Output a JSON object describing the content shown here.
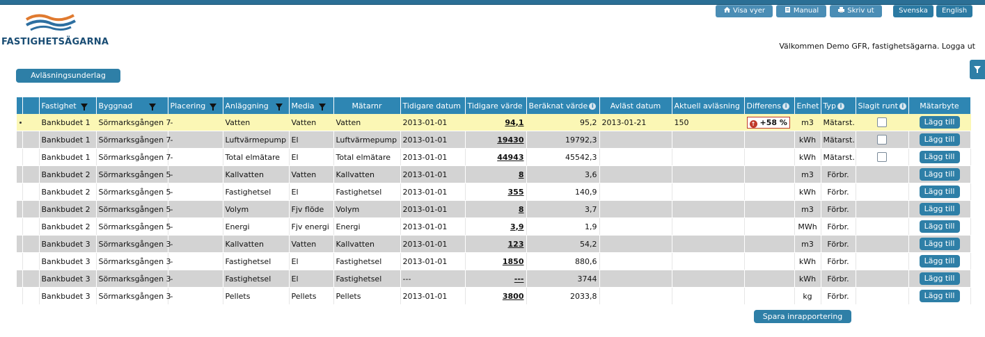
{
  "brand": {
    "name": "FASTIGHETSÄGARNA"
  },
  "topbar": {
    "view_label": "Visa vyer",
    "manual_label": "Manual",
    "print_label": "Skriv ut",
    "lang_sv": "Svenska",
    "lang_en": "English"
  },
  "welcome": "Välkommen Demo GFR, fastighetsägarna. Logga ut",
  "section_button": "Avläsningsunderlag",
  "table": {
    "headers": [
      "Fastighet",
      "Byggnad",
      "Placering",
      "Anläggning",
      "Media",
      "Mätarnr",
      "Tidigare datum",
      "Tidigare värde",
      "Beräknat värde",
      "Avläst datum",
      "Aktuell avläsning",
      "Differens",
      "Enhet",
      "Typ",
      "Slagit runt",
      "Mätarbyte"
    ],
    "add_label": "Lägg till",
    "rows": [
      {
        "fastighet": "Bankbudet 1",
        "byggnad": "Sörmarksgången 7",
        "placering": "-",
        "anl": "Vatten",
        "media": "Vatten",
        "matarnr": "Vatten",
        "tdatum": "2013-01-01",
        "tvarde": "94,1",
        "berakn": "95,2",
        "adatum": "2013-01-21",
        "aktuell": "150",
        "diff": "+58 %",
        "enhet": "m3",
        "typ": "Mätarst."
      },
      {
        "fastighet": "Bankbudet 1",
        "byggnad": "Sörmarksgången 7",
        "placering": "-",
        "anl": "Luftvärmepump",
        "media": "El",
        "matarnr": "Luftvärmepump",
        "tdatum": "2013-01-01",
        "tvarde": "19430",
        "berakn": "19792,3",
        "adatum": "",
        "aktuell": "",
        "diff": "",
        "enhet": "kWh",
        "typ": "Mätarst."
      },
      {
        "fastighet": "Bankbudet 1",
        "byggnad": "Sörmarksgången 7",
        "placering": "-",
        "anl": "Total elmätare",
        "media": "El",
        "matarnr": "Total elmätare",
        "tdatum": "2013-01-01",
        "tvarde": "44943",
        "berakn": "45542,3",
        "adatum": "",
        "aktuell": "",
        "diff": "",
        "enhet": "kWh",
        "typ": "Mätarst."
      },
      {
        "fastighet": "Bankbudet 2",
        "byggnad": "Sörmarksgången 5",
        "placering": "-",
        "anl": "Kallvatten",
        "media": "Vatten",
        "matarnr": "Kallvatten",
        "tdatum": "2013-01-01",
        "tvarde": "8",
        "berakn": "3,6",
        "adatum": "",
        "aktuell": "",
        "diff": "",
        "enhet": "m3",
        "typ": "Förbr."
      },
      {
        "fastighet": "Bankbudet 2",
        "byggnad": "Sörmarksgången 5",
        "placering": "-",
        "anl": "Fastighetsel",
        "media": "El",
        "matarnr": "Fastighetsel",
        "tdatum": "2013-01-01",
        "tvarde": "355",
        "berakn": "140,9",
        "adatum": "",
        "aktuell": "",
        "diff": "",
        "enhet": "kWh",
        "typ": "Förbr."
      },
      {
        "fastighet": "Bankbudet 2",
        "byggnad": "Sörmarksgången 5",
        "placering": "-",
        "anl": "Volym",
        "media": "Fjv flöde",
        "matarnr": "Volym",
        "tdatum": "2013-01-01",
        "tvarde": "8",
        "berakn": "3,7",
        "adatum": "",
        "aktuell": "",
        "diff": "",
        "enhet": "m3",
        "typ": "Förbr."
      },
      {
        "fastighet": "Bankbudet 2",
        "byggnad": "Sörmarksgången 5",
        "placering": "-",
        "anl": "Energi",
        "media": "Fjv energi",
        "matarnr": "Energi",
        "tdatum": "2013-01-01",
        "tvarde": "3,9",
        "berakn": "1,9",
        "adatum": "",
        "aktuell": "",
        "diff": "",
        "enhet": "MWh",
        "typ": "Förbr."
      },
      {
        "fastighet": "Bankbudet 3",
        "byggnad": "Sörmarksgången 3",
        "placering": "-",
        "anl": "Kallvatten",
        "media": "Vatten",
        "matarnr": "Kallvatten",
        "tdatum": "2013-01-01",
        "tvarde": "123",
        "berakn": "54,2",
        "adatum": "",
        "aktuell": "",
        "diff": "",
        "enhet": "m3",
        "typ": "Förbr."
      },
      {
        "fastighet": "Bankbudet 3",
        "byggnad": "Sörmarksgången 3",
        "placering": "-",
        "anl": "Fastighetsel",
        "media": "El",
        "matarnr": "Fastighetsel",
        "tdatum": "2013-01-01",
        "tvarde": "1850",
        "berakn": "880,6",
        "adatum": "",
        "aktuell": "",
        "diff": "",
        "enhet": "kWh",
        "typ": "Förbr."
      },
      {
        "fastighet": "Bankbudet 3",
        "byggnad": "Sörmarksgången 3",
        "placering": "-",
        "anl": "Fastighetsel",
        "media": "El",
        "matarnr": "Fastighetsel",
        "tdatum": "---",
        "tvarde": "---",
        "berakn": "3744",
        "adatum": "",
        "aktuell": "",
        "diff": "",
        "enhet": "kWh",
        "typ": "Förbr."
      },
      {
        "fastighet": "Bankbudet 3",
        "byggnad": "Sörmarksgången 3",
        "placering": "-",
        "anl": "Pellets",
        "media": "Pellets",
        "matarnr": "Pellets",
        "tdatum": "2013-01-01",
        "tvarde": "3800",
        "berakn": "2033,8",
        "adatum": "",
        "aktuell": "",
        "diff": "",
        "enhet": "kg",
        "typ": "Förbr."
      }
    ],
    "checkbox_rows": [
      0,
      1,
      2
    ]
  },
  "save_button": "Spara inrapportering",
  "colors": {
    "header": "#2e86b3",
    "button": "#2e7fa7",
    "highlight": "#fbf7b5",
    "alt_row": "#d3d3d3"
  }
}
